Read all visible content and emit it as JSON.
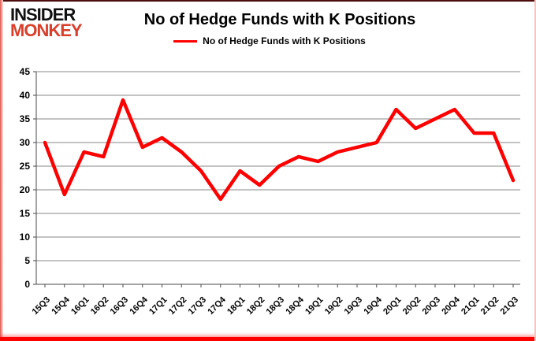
{
  "logo": {
    "line1": "INSIDER",
    "line2": "MONKEY"
  },
  "header": {
    "title": "No of Hedge Funds with K Positions"
  },
  "colors": {
    "series": "#fe0000",
    "gridline": "#878787",
    "axis": "#4a4a4a",
    "text": "#000000",
    "logo_red": "#d8402c",
    "frame_red": "#fe0202"
  },
  "chart_data": {
    "type": "line",
    "title": "No of Hedge Funds with K Positions",
    "categories": [
      "15Q3",
      "15Q4",
      "16Q1",
      "16Q2",
      "16Q3",
      "16Q4",
      "17Q1",
      "17Q2",
      "17Q3",
      "17Q4",
      "18Q1",
      "18Q2",
      "18Q3",
      "18Q4",
      "19Q1",
      "19Q2",
      "19Q3",
      "19Q4",
      "20Q1",
      "20Q2",
      "20Q3",
      "20Q4",
      "21Q1",
      "21Q2",
      "21Q3"
    ],
    "series": [
      {
        "name": "No of Hedge Funds with K Positions",
        "color": "#fe0000",
        "values": [
          30,
          19,
          28,
          27,
          39,
          29,
          31,
          28,
          24,
          18,
          24,
          21,
          25,
          27,
          26,
          28,
          29,
          30,
          37,
          33,
          35,
          37,
          32,
          32,
          22
        ]
      }
    ],
    "xlabel": "",
    "ylabel": "",
    "ylim": [
      0,
      45
    ],
    "yticks": [
      0,
      5,
      10,
      15,
      20,
      25,
      30,
      35,
      40,
      45
    ],
    "grid": "horizontal",
    "legend_position": "top"
  }
}
